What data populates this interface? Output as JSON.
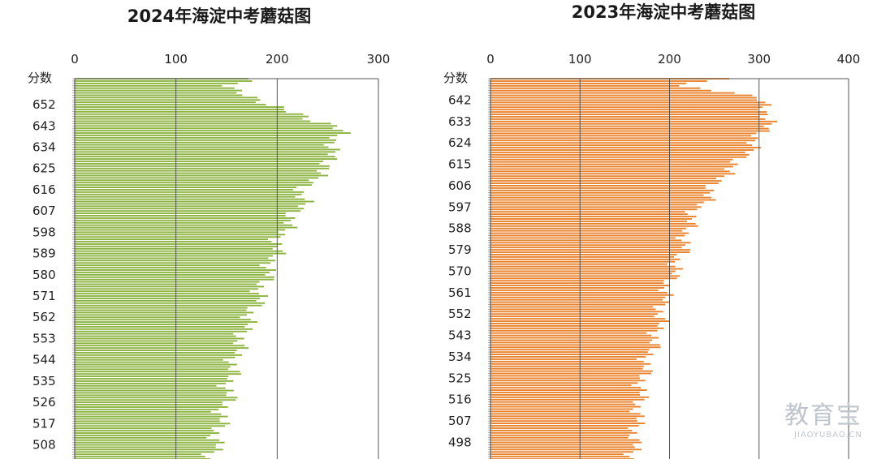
{
  "chart_data": [
    {
      "type": "bar",
      "orientation": "horizontal",
      "title": "2024年海淀中考蘑菇图",
      "ylabel": "分数",
      "xticks": [
        0,
        100,
        200,
        300
      ],
      "xlim": [
        0,
        300
      ],
      "ylim": [
        663,
        502
      ],
      "score_labels": [
        652,
        643,
        634,
        625,
        616,
        607,
        598,
        589,
        580,
        571,
        562,
        553,
        544,
        535,
        526,
        517,
        508
      ],
      "color": "#8cb33f",
      "grid": true,
      "profile_scores": [
        663,
        660,
        656,
        652,
        648,
        645,
        643,
        640,
        637,
        634,
        631,
        628,
        625,
        622,
        619,
        616,
        613,
        610,
        607,
        604,
        601,
        598,
        593,
        589,
        585,
        580,
        575,
        571,
        566,
        562,
        557,
        553,
        548,
        544,
        539,
        535,
        530,
        526,
        521,
        517,
        512,
        508,
        505,
        502
      ],
      "profile_counts": [
        170,
        150,
        175,
        185,
        225,
        240,
        255,
        262,
        258,
        255,
        252,
        250,
        252,
        240,
        230,
        225,
        225,
        225,
        220,
        215,
        210,
        205,
        200,
        198,
        195,
        190,
        185,
        182,
        178,
        172,
        168,
        165,
        160,
        158,
        155,
        152,
        152,
        150,
        145,
        143,
        140,
        140,
        135,
        132
      ]
    },
    {
      "type": "bar",
      "orientation": "horizontal",
      "title": "2023年海淀中考蘑菇图",
      "ylabel": "分数",
      "xticks": [
        0,
        100,
        200,
        300,
        400
      ],
      "xlim": [
        0,
        400
      ],
      "ylim": [
        651,
        491
      ],
      "score_labels": [
        642,
        633,
        624,
        615,
        606,
        597,
        588,
        579,
        570,
        561,
        552,
        543,
        534,
        525,
        516,
        507,
        498
      ],
      "color": "#e8822c",
      "grid": true,
      "profile_scores": [
        651,
        648,
        645,
        642,
        639,
        636,
        633,
        630,
        627,
        624,
        621,
        618,
        615,
        612,
        609,
        606,
        603,
        600,
        597,
        593,
        588,
        584,
        579,
        575,
        570,
        565,
        561,
        556,
        552,
        547,
        543,
        538,
        534,
        529,
        525,
        520,
        516,
        511,
        507,
        502,
        498,
        494,
        491
      ],
      "profile_counts": [
        255,
        210,
        280,
        300,
        305,
        310,
        312,
        305,
        300,
        295,
        290,
        280,
        275,
        265,
        255,
        250,
        245,
        240,
        232,
        225,
        220,
        218,
        215,
        210,
        205,
        200,
        195,
        192,
        190,
        188,
        185,
        180,
        176,
        172,
        170,
        168,
        166,
        165,
        163,
        162,
        160,
        160,
        158
      ]
    }
  ],
  "watermark": {
    "main": "教育宝",
    "sub": "JIAOYUBAO.CN"
  }
}
